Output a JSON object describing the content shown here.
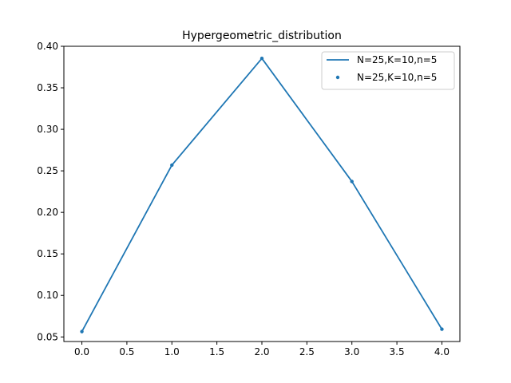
{
  "chart_data": {
    "type": "line",
    "title": "Hypergeometric_distribution",
    "xlabel": "",
    "ylabel": "",
    "xlim": [
      -0.2,
      4.2
    ],
    "ylim": [
      0.0445,
      0.4
    ],
    "xticks": [
      0.0,
      0.5,
      1.0,
      1.5,
      2.0,
      2.5,
      3.0,
      3.5,
      4.0
    ],
    "xtick_labels": [
      "0.0",
      "0.5",
      "1.0",
      "1.5",
      "2.0",
      "2.5",
      "3.0",
      "3.5",
      "4.0"
    ],
    "yticks": [
      0.05,
      0.1,
      0.15,
      0.2,
      0.25,
      0.3,
      0.35,
      0.4
    ],
    "ytick_labels": [
      "0.05",
      "0.10",
      "0.15",
      "0.20",
      "0.25",
      "0.30",
      "0.35",
      "0.40"
    ],
    "grid": false,
    "legend_position": "top-right",
    "x": [
      0,
      1,
      2,
      3,
      4
    ],
    "series": [
      {
        "name": "N=25,K=10,n=5",
        "kind": "line",
        "color": "#1f77b4",
        "values": [
          0.0565,
          0.2569,
          0.3854,
          0.2372,
          0.0593
        ]
      },
      {
        "name": "N=25,K=10,n=5",
        "kind": "scatter",
        "color": "#1f77b4",
        "values": [
          0.0565,
          0.2569,
          0.3854,
          0.2372,
          0.0593
        ]
      }
    ]
  }
}
